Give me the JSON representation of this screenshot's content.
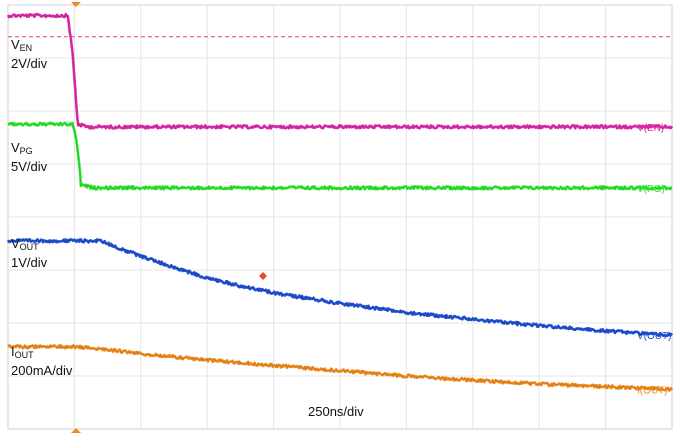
{
  "chart_data": {
    "type": "line",
    "divisions": {
      "x": 10,
      "y": 8
    },
    "timebase": "250ns/div",
    "grid": true,
    "enable_threshold_y_div": 7.4,
    "channels": [
      {
        "name": "V(EN)",
        "label_main": "V",
        "label_sub": "EN",
        "scale": "2V/div",
        "color": "#e02aa8",
        "points": [
          [
            0,
            7.8
          ],
          [
            0.9,
            7.8
          ],
          [
            0.98,
            7.0
          ],
          [
            1.05,
            5.75
          ],
          [
            1.2,
            5.7
          ],
          [
            10,
            5.7
          ]
        ]
      },
      {
        "name": "V(PG)",
        "label_main": "V",
        "label_sub": "PG",
        "scale": "5V/div",
        "color": "#2ee62e",
        "points": [
          [
            0,
            5.75
          ],
          [
            0.98,
            5.75
          ],
          [
            1.05,
            5.3
          ],
          [
            1.1,
            4.6
          ],
          [
            1.3,
            4.55
          ],
          [
            10,
            4.55
          ]
        ]
      },
      {
        "name": "V(OUT)",
        "label_main": "V",
        "label_sub": "OUT",
        "scale": "1V/div",
        "color": "#1f4fd6",
        "points": [
          [
            0,
            3.55
          ],
          [
            1,
            3.55
          ],
          [
            1.4,
            3.55
          ],
          [
            1.8,
            3.35
          ],
          [
            2.5,
            3.05
          ],
          [
            3,
            2.85
          ],
          [
            3.5,
            2.7
          ],
          [
            4,
            2.57
          ],
          [
            5,
            2.37
          ],
          [
            6,
            2.2
          ],
          [
            7,
            2.07
          ],
          [
            8,
            1.95
          ],
          [
            9,
            1.85
          ],
          [
            10,
            1.77
          ]
        ]
      },
      {
        "name": "I(OUT)",
        "label_main": "I",
        "label_sub": "OUT",
        "scale": "200mA/div",
        "color": "#f08c1e",
        "points": [
          [
            0,
            1.55
          ],
          [
            1,
            1.55
          ],
          [
            1.5,
            1.5
          ],
          [
            2,
            1.42
          ],
          [
            3,
            1.3
          ],
          [
            4,
            1.2
          ],
          [
            5,
            1.1
          ],
          [
            6,
            1.0
          ],
          [
            7,
            0.92
          ],
          [
            8,
            0.85
          ],
          [
            9,
            0.8
          ],
          [
            10,
            0.75
          ]
        ]
      }
    ]
  }
}
